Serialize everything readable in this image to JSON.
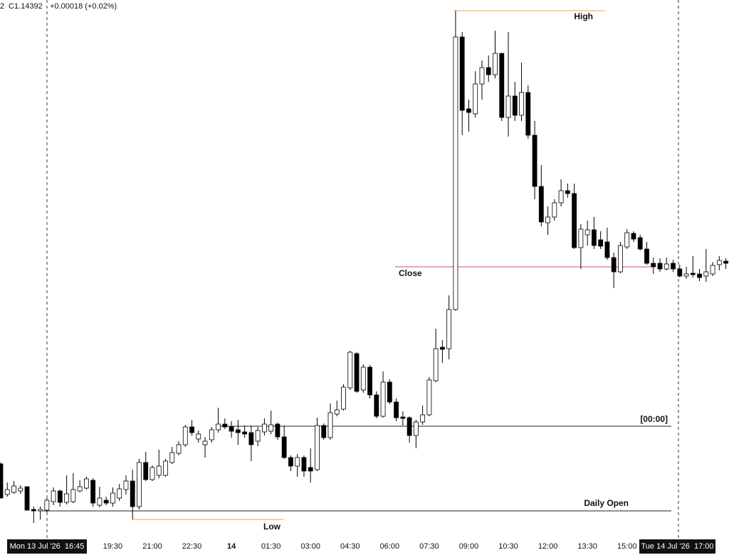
{
  "chart_data": {
    "type": "candlestick",
    "header": {
      "prefix": "2",
      "close": "C1.14392",
      "change": "+0.00018 (+0.02%)"
    },
    "up_color": "#ffffff",
    "down_color": "#000000",
    "ylim": [
      0,
      780
    ],
    "categories": [
      null,
      null,
      null,
      null,
      null,
      null,
      null,
      null,
      null,
      null,
      null,
      null,
      null,
      null,
      null,
      null,
      null,
      "19:30",
      null,
      null,
      null,
      null,
      null,
      "21:00",
      null,
      null,
      null,
      null,
      null,
      "22:30",
      null,
      null,
      null,
      null,
      null,
      "14",
      null,
      null,
      null,
      null,
      null,
      "01:30",
      null,
      null,
      null,
      null,
      null,
      "03:00",
      null,
      null,
      null,
      null,
      null,
      "04:30",
      null,
      null,
      null,
      null,
      null,
      "06:00",
      null,
      null,
      null,
      null,
      null,
      "07:30",
      null,
      null,
      null,
      null,
      null,
      "09:00",
      null,
      null,
      null,
      null,
      null,
      "10:30",
      null,
      null,
      null,
      null,
      null,
      "12:00",
      null,
      null,
      null,
      null,
      null,
      "13:30",
      null,
      null,
      null,
      null,
      null,
      "15:00",
      null,
      null,
      null,
      null,
      null,
      null,
      null,
      null,
      null,
      null,
      null,
      null,
      null,
      null,
      null
    ],
    "ohlc": [
      [
        128,
        130,
        80,
        80
      ],
      [
        85,
        102,
        82,
        92
      ],
      [
        88,
        104,
        86,
        97
      ],
      [
        90,
        98,
        86,
        94
      ],
      [
        96,
        96,
        63,
        63
      ],
      [
        64,
        68,
        45,
        62
      ],
      [
        62,
        68,
        50,
        64
      ],
      [
        63,
        80,
        60,
        77
      ],
      [
        75,
        95,
        70,
        90
      ],
      [
        90,
        92,
        68,
        74
      ],
      [
        74,
        112,
        71,
        86
      ],
      [
        75,
        115,
        73,
        92
      ],
      [
        90,
        105,
        88,
        96
      ],
      [
        94,
        110,
        92,
        107
      ],
      [
        105,
        108,
        68,
        73
      ],
      [
        70,
        96,
        67,
        80
      ],
      [
        77,
        82,
        70,
        73
      ],
      [
        73,
        95,
        68,
        87
      ],
      [
        80,
        100,
        76,
        93
      ],
      [
        92,
        112,
        85,
        104
      ],
      [
        104,
        120,
        50,
        68
      ],
      [
        68,
        135,
        64,
        130
      ],
      [
        130,
        145,
        104,
        106
      ],
      [
        106,
        126,
        104,
        123
      ],
      [
        112,
        148,
        108,
        125
      ],
      [
        112,
        135,
        110,
        132
      ],
      [
        130,
        152,
        128,
        144
      ],
      [
        143,
        160,
        140,
        155
      ],
      [
        155,
        183,
        152,
        180
      ],
      [
        180,
        190,
        168,
        172
      ],
      [
        163,
        175,
        158,
        170
      ],
      [
        155,
        166,
        137,
        160
      ],
      [
        162,
        180,
        158,
        176
      ],
      [
        176,
        207,
        172,
        184
      ],
      [
        184,
        192,
        177,
        180
      ],
      [
        180,
        188,
        165,
        174
      ],
      [
        176,
        190,
        155,
        172
      ],
      [
        173,
        182,
        165,
        170
      ],
      [
        172,
        182,
        132,
        155
      ],
      [
        160,
        180,
        153,
        175
      ],
      [
        173,
        192,
        168,
        184
      ],
      [
        174,
        203,
        170,
        183
      ],
      [
        184,
        186,
        162,
        166
      ],
      [
        166,
        182,
        135,
        137
      ],
      [
        137,
        140,
        118,
        125
      ],
      [
        125,
        142,
        110,
        137
      ],
      [
        137,
        140,
        110,
        118
      ],
      [
        123,
        150,
        102,
        118
      ],
      [
        120,
        193,
        118,
        182
      ],
      [
        182,
        185,
        162,
        165
      ],
      [
        165,
        213,
        162,
        200
      ],
      [
        198,
        217,
        195,
        204
      ],
      [
        205,
        240,
        203,
        236
      ],
      [
        235,
        287,
        232,
        285
      ],
      [
        283,
        285,
        228,
        230
      ],
      [
        232,
        268,
        228,
        264
      ],
      [
        264,
        267,
        220,
        225
      ],
      [
        225,
        230,
        192,
        195
      ],
      [
        195,
        258,
        193,
        243
      ],
      [
        243,
        247,
        212,
        215
      ],
      [
        215,
        220,
        188,
        193
      ],
      [
        194,
        202,
        182,
        192
      ],
      [
        193,
        195,
        158,
        168
      ],
      [
        168,
        190,
        150,
        187
      ],
      [
        187,
        210,
        183,
        197
      ],
      [
        197,
        250,
        195,
        246
      ],
      [
        245,
        318,
        243,
        290
      ],
      [
        292,
        302,
        270,
        289
      ],
      [
        290,
        365,
        275,
        345
      ],
      [
        345,
        765,
        343,
        728
      ],
      [
        728,
        735,
        590,
        625
      ],
      [
        627,
        640,
        595,
        622
      ],
      [
        620,
        680,
        615,
        662
      ],
      [
        662,
        695,
        640,
        685
      ],
      [
        685,
        702,
        665,
        675
      ],
      [
        675,
        737,
        670,
        705
      ],
      [
        705,
        705,
        610,
        615
      ],
      [
        615,
        735,
        588,
        645
      ],
      [
        645,
        665,
        610,
        618
      ],
      [
        618,
        692,
        610,
        650
      ],
      [
        650,
        660,
        585,
        590
      ],
      [
        590,
        610,
        500,
        518
      ],
      [
        518,
        548,
        462,
        468
      ],
      [
        467,
        490,
        450,
        475
      ],
      [
        475,
        500,
        470,
        495
      ],
      [
        495,
        528,
        490,
        512
      ],
      [
        512,
        522,
        502,
        508
      ],
      [
        508,
        522,
        430,
        432
      ],
      [
        432,
        465,
        402,
        458
      ],
      [
        450,
        470,
        435,
        457
      ],
      [
        457,
        475,
        430,
        435
      ],
      [
        443,
        455,
        430,
        434
      ],
      [
        440,
        460,
        415,
        418
      ],
      [
        418,
        425,
        375,
        398
      ],
      [
        398,
        440,
        396,
        435
      ],
      [
        433,
        458,
        430,
        453
      ],
      [
        452,
        455,
        440,
        444
      ],
      [
        446,
        450,
        428,
        430
      ],
      [
        430,
        440,
        408,
        410
      ],
      [
        410,
        418,
        395,
        405
      ],
      [
        410,
        417,
        398,
        402
      ],
      [
        402,
        418,
        400,
        409
      ],
      [
        410,
        415,
        398,
        402
      ],
      [
        402,
        408,
        390,
        392
      ],
      [
        392,
        405,
        388,
        395
      ],
      [
        396,
        420,
        390,
        394
      ],
      [
        395,
        402,
        385,
        390
      ],
      [
        392,
        430,
        384,
        398
      ],
      [
        395,
        412,
        392,
        407
      ],
      [
        408,
        420,
        400,
        414
      ],
      [
        413,
        417,
        402,
        410
      ]
    ],
    "levels": [
      {
        "label": "High",
        "value": 765,
        "color": "#f5a04a"
      },
      {
        "label": "Close",
        "value": 405,
        "color": "#e0457b"
      },
      {
        "label": "[00:00]",
        "value": 181,
        "color": "#222222"
      },
      {
        "label": "Daily Open",
        "value": 62,
        "color": "#222222"
      },
      {
        "label": "Low",
        "value": 50,
        "color": "#f5a04a"
      }
    ],
    "crosshair_labels": [
      "Mon 13 Jul '26  16:45",
      "Tue 14 Jul '26  17:00"
    ]
  }
}
